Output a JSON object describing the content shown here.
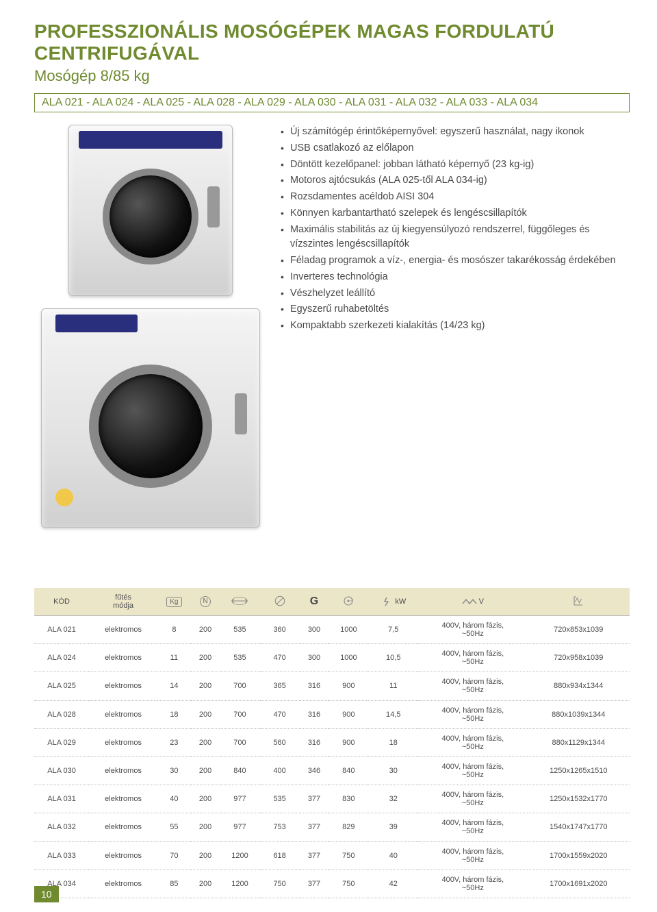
{
  "title": "PROFESSZIONÁLIS MOSÓGÉPEK MAGAS FORDULATÚ CENTRIFUGÁVAL",
  "subtitle": "Mosógép 8/85 kg",
  "model_line": "ALA 021 - ALA 024 - ALA 025 - ALA 028 - ALA 029 - ALA 030 - ALA 031 - ALA 032 - ALA 033 - ALA 034",
  "bullets": [
    "Új számítógép érintőképernyővel: egyszerű használat, nagy ikonok",
    "USB csatlakozó az előlapon",
    "Döntött kezelőpanel: jobban látható képernyő (23 kg-ig)",
    "Motoros ajtócsukás (ALA 025-től ALA 034-ig)",
    "Rozsdamentes acéldob AISI 304",
    "Könnyen karbantartható szelepek és lengéscsillapítók",
    "Maximális stabilitás az új kiegyensúlyozó rendszerrel, függőleges és vízszintes lengéscsillapítók",
    "Féladag programok a víz-, energia- és mosószer takarékosság érdekében",
    "Inverteres technológia",
    "Vészhelyzet leállító",
    "Egyszerű ruhabetöltés",
    "Kompaktabb szerkezeti kialakítás (14/23 kg)"
  ],
  "table": {
    "headers": {
      "code": "KÓD",
      "heating": "fűtés\nmódja",
      "kg": "Kg",
      "n": "N",
      "arrow_h": "width-icon",
      "diameter": "diameter-icon",
      "g": "G",
      "spin": "spin-icon",
      "kw": "kW",
      "v": "V",
      "dims": "dims-icon"
    },
    "rows": [
      {
        "code": "ALA 021",
        "heat": "elektromos",
        "kg": "8",
        "n": "200",
        "w": "535",
        "d": "360",
        "g": "300",
        "spin": "1000",
        "kw": "7,5",
        "v": "400V, három fázis,\n~50Hz",
        "dims": "720x853x1039"
      },
      {
        "code": "ALA 024",
        "heat": "elektromos",
        "kg": "11",
        "n": "200",
        "w": "535",
        "d": "470",
        "g": "300",
        "spin": "1000",
        "kw": "10,5",
        "v": "400V, három fázis,\n~50Hz",
        "dims": "720x958x1039"
      },
      {
        "code": "ALA 025",
        "heat": "elektromos",
        "kg": "14",
        "n": "200",
        "w": "700",
        "d": "365",
        "g": "316",
        "spin": "900",
        "kw": "11",
        "v": "400V, három fázis,\n~50Hz",
        "dims": "880x934x1344"
      },
      {
        "code": "ALA 028",
        "heat": "elektromos",
        "kg": "18",
        "n": "200",
        "w": "700",
        "d": "470",
        "g": "316",
        "spin": "900",
        "kw": "14,5",
        "v": "400V, három fázis,\n~50Hz",
        "dims": "880x1039x1344"
      },
      {
        "code": "ALA 029",
        "heat": "elektromos",
        "kg": "23",
        "n": "200",
        "w": "700",
        "d": "560",
        "g": "316",
        "spin": "900",
        "kw": "18",
        "v": "400V, három fázis,\n~50Hz",
        "dims": "880x1129x1344"
      },
      {
        "code": "ALA 030",
        "heat": "elektromos",
        "kg": "30",
        "n": "200",
        "w": "840",
        "d": "400",
        "g": "346",
        "spin": "840",
        "kw": "30",
        "v": "400V, három fázis,\n~50Hz",
        "dims": "1250x1265x1510"
      },
      {
        "code": "ALA 031",
        "heat": "elektromos",
        "kg": "40",
        "n": "200",
        "w": "977",
        "d": "535",
        "g": "377",
        "spin": "830",
        "kw": "32",
        "v": "400V, három fázis,\n~50Hz",
        "dims": "1250x1532x1770"
      },
      {
        "code": "ALA 032",
        "heat": "elektromos",
        "kg": "55",
        "n": "200",
        "w": "977",
        "d": "753",
        "g": "377",
        "spin": "829",
        "kw": "39",
        "v": "400V, három fázis,\n~50Hz",
        "dims": "1540x1747x1770"
      },
      {
        "code": "ALA 033",
        "heat": "elektromos",
        "kg": "70",
        "n": "200",
        "w": "1200",
        "d": "618",
        "g": "377",
        "spin": "750",
        "kw": "40",
        "v": "400V, három fázis,\n~50Hz",
        "dims": "1700x1559x2020"
      },
      {
        "code": "ALA 034",
        "heat": "elektromos",
        "kg": "85",
        "n": "200",
        "w": "1200",
        "d": "750",
        "g": "377",
        "spin": "750",
        "kw": "42",
        "v": "400V, három fázis,\n~50Hz",
        "dims": "1700x1691x2020"
      }
    ]
  },
  "page_number": "10",
  "colors": {
    "accent": "#6f8a2f",
    "header_bg": "#ece6c9",
    "text": "#4a4a4a"
  }
}
